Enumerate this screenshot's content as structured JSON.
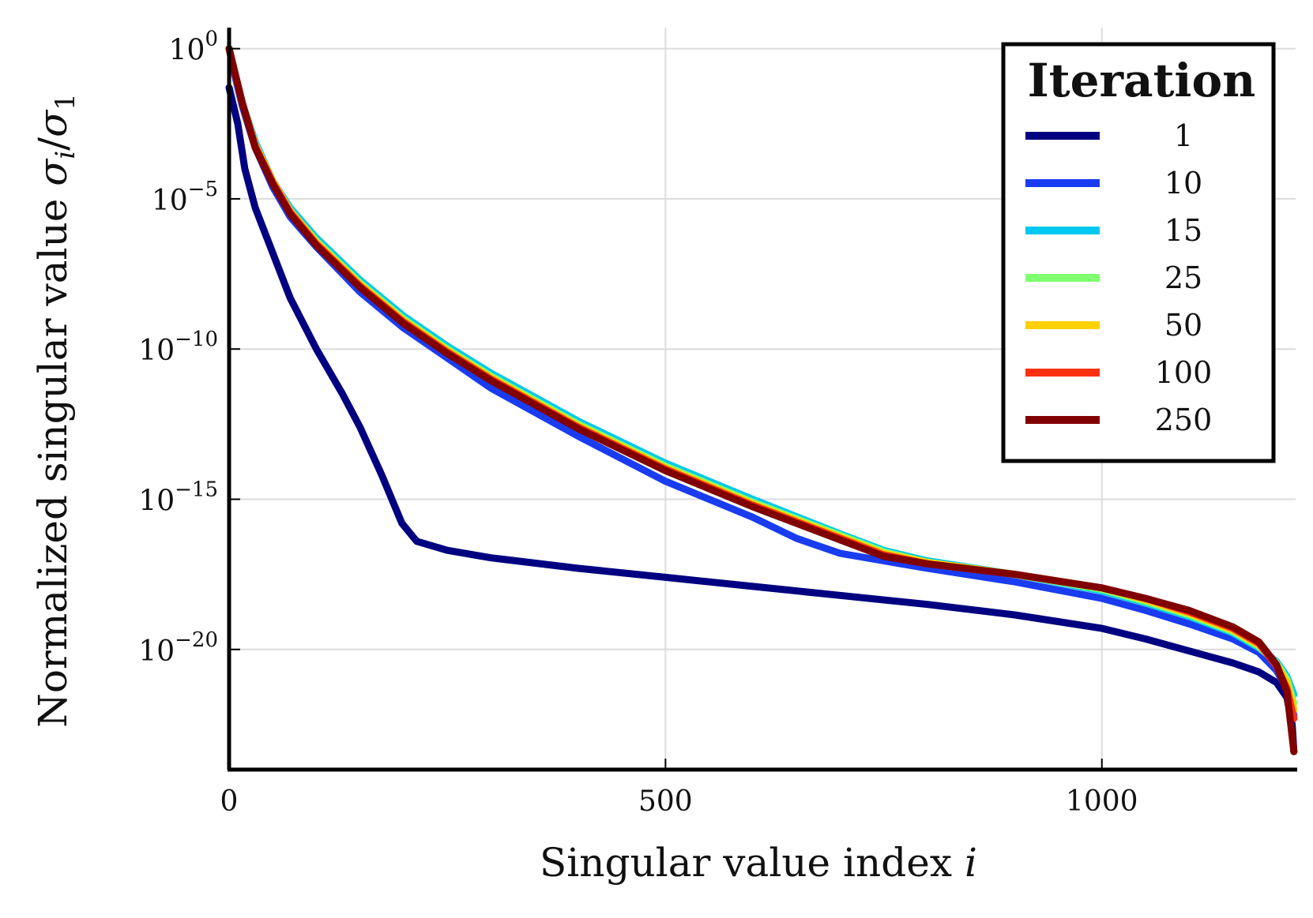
{
  "chart_data": {
    "type": "line",
    "title": "",
    "xlabel": "Singular value index",
    "xlabel_var": "i",
    "ylabel": "Normalized singular value",
    "ylabel_var": "σ",
    "ylabel_sub_i": "i",
    "ylabel_slash": "/",
    "ylabel_sub_1": "1",
    "yscale": "log",
    "xlim": [
      0,
      1222
    ],
    "ylim_exp": [
      -24,
      0.7
    ],
    "x_ticks": [
      0,
      500,
      1000
    ],
    "x_tick_labels": [
      "0",
      "500",
      "1000"
    ],
    "y_ticks_exp": [
      0,
      -5,
      -10,
      -15,
      -20
    ],
    "y_tick_base": "10",
    "y_tick_exp_labels": [
      "0",
      "−5",
      "−10",
      "−15",
      "−20"
    ],
    "grid": true,
    "legend": {
      "title": "Iteration",
      "placement": "top-right"
    },
    "series": [
      {
        "name": "1",
        "color": "#000080",
        "points_log10": [
          [
            0,
            -1.3
          ],
          [
            10,
            -2.5
          ],
          [
            18,
            -4.0
          ],
          [
            30,
            -5.3
          ],
          [
            50,
            -6.8
          ],
          [
            70,
            -8.3
          ],
          [
            100,
            -10.0
          ],
          [
            130,
            -11.5
          ],
          [
            150,
            -12.6
          ],
          [
            175,
            -14.2
          ],
          [
            198,
            -15.8
          ],
          [
            215,
            -16.4
          ],
          [
            250,
            -16.7
          ],
          [
            300,
            -16.95
          ],
          [
            400,
            -17.3
          ],
          [
            500,
            -17.6
          ],
          [
            600,
            -17.9
          ],
          [
            700,
            -18.2
          ],
          [
            800,
            -18.5
          ],
          [
            900,
            -18.85
          ],
          [
            1000,
            -19.3
          ],
          [
            1050,
            -19.65
          ],
          [
            1100,
            -20.05
          ],
          [
            1150,
            -20.45
          ],
          [
            1180,
            -20.75
          ],
          [
            1200,
            -21.1
          ],
          [
            1212,
            -21.6
          ],
          [
            1218,
            -22.5
          ],
          [
            1220,
            -23.4
          ]
        ]
      },
      {
        "name": "10",
        "color": "#1a3cf0",
        "points_log10": [
          [
            0,
            0.0
          ],
          [
            5,
            -0.7
          ],
          [
            15,
            -1.9
          ],
          [
            30,
            -3.3
          ],
          [
            50,
            -4.6
          ],
          [
            70,
            -5.6
          ],
          [
            100,
            -6.6
          ],
          [
            150,
            -8.1
          ],
          [
            200,
            -9.3
          ],
          [
            250,
            -10.3
          ],
          [
            300,
            -11.3
          ],
          [
            400,
            -12.9
          ],
          [
            500,
            -14.4
          ],
          [
            600,
            -15.6
          ],
          [
            650,
            -16.3
          ],
          [
            700,
            -16.8
          ],
          [
            750,
            -17.05
          ],
          [
            800,
            -17.3
          ],
          [
            900,
            -17.75
          ],
          [
            1000,
            -18.3
          ],
          [
            1050,
            -18.7
          ],
          [
            1100,
            -19.15
          ],
          [
            1150,
            -19.65
          ],
          [
            1180,
            -20.1
          ],
          [
            1200,
            -20.7
          ],
          [
            1212,
            -21.3
          ],
          [
            1220,
            -22.2
          ]
        ]
      },
      {
        "name": "15",
        "color": "#00c8f0",
        "points_log10": [
          [
            0,
            0.0
          ],
          [
            5,
            -0.6
          ],
          [
            15,
            -1.8
          ],
          [
            30,
            -3.1
          ],
          [
            50,
            -4.4
          ],
          [
            70,
            -5.3
          ],
          [
            100,
            -6.3
          ],
          [
            150,
            -7.7
          ],
          [
            200,
            -8.9
          ],
          [
            250,
            -9.9
          ],
          [
            300,
            -10.8
          ],
          [
            400,
            -12.4
          ],
          [
            500,
            -13.8
          ],
          [
            600,
            -15.0
          ],
          [
            700,
            -16.15
          ],
          [
            750,
            -16.7
          ],
          [
            800,
            -17.05
          ],
          [
            900,
            -17.5
          ],
          [
            1000,
            -18.05
          ],
          [
            1050,
            -18.45
          ],
          [
            1100,
            -18.9
          ],
          [
            1150,
            -19.45
          ],
          [
            1180,
            -19.95
          ],
          [
            1200,
            -20.4
          ],
          [
            1212,
            -20.9
          ],
          [
            1220,
            -21.5
          ]
        ]
      },
      {
        "name": "25",
        "color": "#80ff70",
        "points_log10": [
          [
            0,
            0.0
          ],
          [
            5,
            -0.6
          ],
          [
            15,
            -1.8
          ],
          [
            30,
            -3.2
          ],
          [
            50,
            -4.4
          ],
          [
            70,
            -5.4
          ],
          [
            100,
            -6.4
          ],
          [
            150,
            -7.8
          ],
          [
            200,
            -9.0
          ],
          [
            250,
            -10.0
          ],
          [
            300,
            -10.9
          ],
          [
            400,
            -12.5
          ],
          [
            500,
            -13.9
          ],
          [
            600,
            -15.1
          ],
          [
            700,
            -16.2
          ],
          [
            750,
            -16.75
          ],
          [
            800,
            -17.1
          ],
          [
            900,
            -17.5
          ],
          [
            1000,
            -18.0
          ],
          [
            1050,
            -18.4
          ],
          [
            1100,
            -18.85
          ],
          [
            1150,
            -19.4
          ],
          [
            1180,
            -19.9
          ],
          [
            1200,
            -20.45
          ],
          [
            1212,
            -21.0
          ],
          [
            1220,
            -21.8
          ]
        ]
      },
      {
        "name": "50",
        "color": "#ffd000",
        "points_log10": [
          [
            0,
            0.0
          ],
          [
            5,
            -0.6
          ],
          [
            15,
            -1.8
          ],
          [
            30,
            -3.2
          ],
          [
            50,
            -4.4
          ],
          [
            70,
            -5.4
          ],
          [
            100,
            -6.45
          ],
          [
            150,
            -7.85
          ],
          [
            200,
            -9.05
          ],
          [
            250,
            -10.05
          ],
          [
            300,
            -10.95
          ],
          [
            400,
            -12.55
          ],
          [
            500,
            -13.95
          ],
          [
            600,
            -15.15
          ],
          [
            700,
            -16.25
          ],
          [
            750,
            -16.8
          ],
          [
            800,
            -17.1
          ],
          [
            900,
            -17.5
          ],
          [
            1000,
            -17.95
          ],
          [
            1050,
            -18.35
          ],
          [
            1100,
            -18.8
          ],
          [
            1150,
            -19.35
          ],
          [
            1180,
            -19.85
          ],
          [
            1200,
            -20.5
          ],
          [
            1212,
            -21.1
          ],
          [
            1220,
            -22.0
          ]
        ]
      },
      {
        "name": "100",
        "color": "#ff3010",
        "points_log10": [
          [
            0,
            0.0
          ],
          [
            5,
            -0.6
          ],
          [
            15,
            -1.8
          ],
          [
            30,
            -3.25
          ],
          [
            50,
            -4.45
          ],
          [
            70,
            -5.45
          ],
          [
            100,
            -6.5
          ],
          [
            150,
            -7.9
          ],
          [
            200,
            -9.1
          ],
          [
            250,
            -10.1
          ],
          [
            300,
            -11.0
          ],
          [
            400,
            -12.6
          ],
          [
            500,
            -14.0
          ],
          [
            600,
            -15.2
          ],
          [
            700,
            -16.3
          ],
          [
            750,
            -16.85
          ],
          [
            800,
            -17.15
          ],
          [
            900,
            -17.5
          ],
          [
            1000,
            -17.95
          ],
          [
            1050,
            -18.3
          ],
          [
            1100,
            -18.75
          ],
          [
            1150,
            -19.3
          ],
          [
            1180,
            -19.8
          ],
          [
            1200,
            -20.55
          ],
          [
            1212,
            -21.3
          ],
          [
            1220,
            -22.3
          ]
        ]
      },
      {
        "name": "250",
        "color": "#800000",
        "points_log10": [
          [
            0,
            0.0
          ],
          [
            5,
            -0.6
          ],
          [
            15,
            -1.8
          ],
          [
            30,
            -3.3
          ],
          [
            50,
            -4.5
          ],
          [
            70,
            -5.5
          ],
          [
            100,
            -6.55
          ],
          [
            150,
            -7.95
          ],
          [
            200,
            -9.15
          ],
          [
            250,
            -10.15
          ],
          [
            300,
            -11.05
          ],
          [
            400,
            -12.65
          ],
          [
            500,
            -14.05
          ],
          [
            600,
            -15.25
          ],
          [
            700,
            -16.35
          ],
          [
            750,
            -16.9
          ],
          [
            800,
            -17.15
          ],
          [
            900,
            -17.5
          ],
          [
            1000,
            -17.95
          ],
          [
            1050,
            -18.3
          ],
          [
            1100,
            -18.7
          ],
          [
            1150,
            -19.25
          ],
          [
            1180,
            -19.75
          ],
          [
            1200,
            -20.5
          ],
          [
            1212,
            -21.4
          ],
          [
            1220,
            -23.4
          ]
        ]
      }
    ]
  }
}
